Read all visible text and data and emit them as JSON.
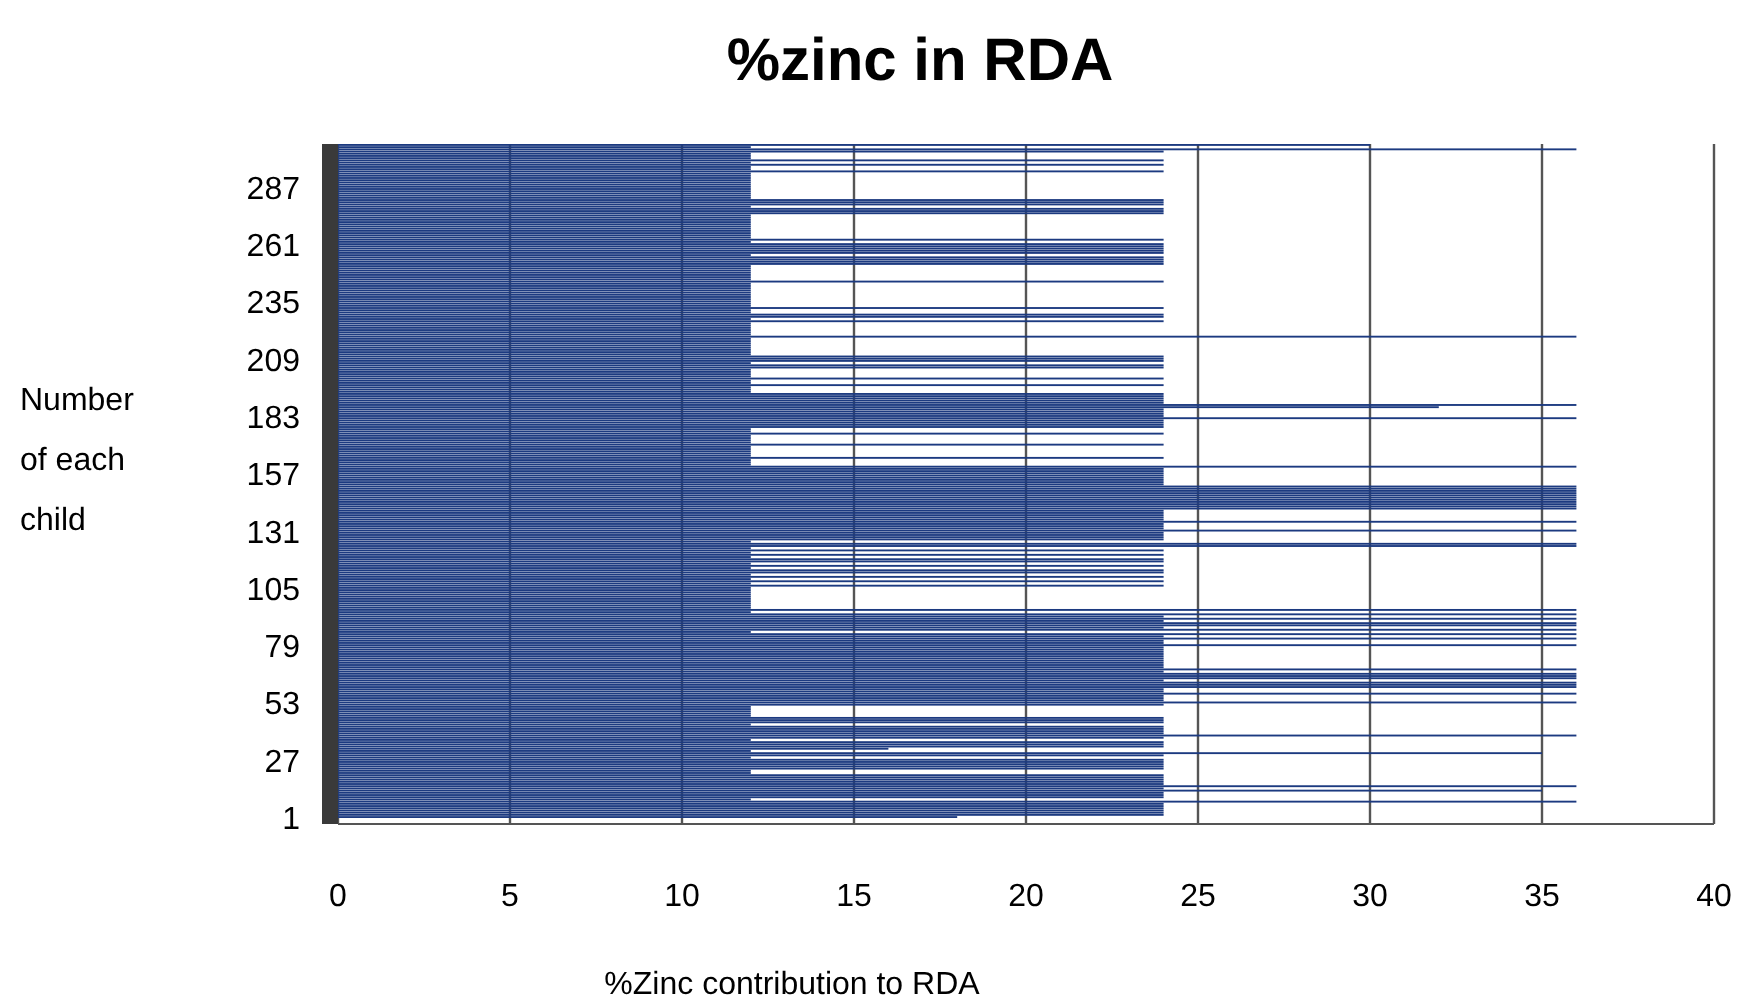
{
  "chart_data": {
    "type": "bar",
    "orientation": "horizontal",
    "title": "%zinc in RDA",
    "xlabel": "%Zinc contribution to RDA",
    "ylabel": "Number of each child",
    "categories": [
      null,
      null,
      null,
      null,
      null,
      null,
      null,
      null,
      null,
      null,
      null,
      null,
      null,
      null,
      null,
      null,
      null,
      null,
      null,
      "287",
      null,
      null,
      null,
      null,
      null,
      null,
      null,
      null,
      null,
      null,
      null,
      null,
      null,
      null,
      null,
      null,
      null,
      null,
      null,
      null,
      null,
      null,
      null,
      null,
      null,
      "261",
      null,
      null,
      null,
      null,
      null,
      null,
      null,
      null,
      null,
      null,
      null,
      null,
      null,
      null,
      null,
      null,
      null,
      null,
      null,
      null,
      null,
      null,
      null,
      null,
      null,
      "235",
      null,
      null,
      null,
      null,
      null,
      null,
      null,
      null,
      null,
      null,
      null,
      null,
      null,
      null,
      null,
      null,
      null,
      null,
      null,
      null,
      null,
      null,
      null,
      null,
      null,
      "209",
      null,
      null,
      null,
      null,
      null,
      null,
      null,
      null,
      null,
      null,
      null,
      null,
      null,
      null,
      null,
      null,
      null,
      null,
      null,
      null,
      null,
      null,
      null,
      null,
      null,
      "183",
      null,
      null,
      null,
      null,
      null,
      null,
      null,
      null,
      null,
      null,
      null,
      null,
      null,
      null,
      null,
      null,
      null,
      null,
      null,
      null,
      null,
      null,
      null,
      null,
      null,
      "157",
      null,
      null,
      null,
      null,
      null,
      null,
      null,
      null,
      null,
      null,
      null,
      null,
      null,
      null,
      null,
      null,
      null,
      null,
      null,
      null,
      null,
      null,
      null,
      null,
      null,
      "131",
      null,
      null,
      null,
      null,
      null,
      null,
      null,
      null,
      null,
      null,
      null,
      null,
      null,
      null,
      null,
      null,
      null,
      null,
      null,
      null,
      null,
      null,
      null,
      null,
      null,
      "105",
      null,
      null,
      null,
      null,
      null,
      null,
      null,
      null,
      null,
      null,
      null,
      null,
      null,
      null,
      null,
      null,
      null,
      null,
      null,
      null,
      null,
      null,
      null,
      null,
      null,
      "79",
      null,
      null,
      null,
      null,
      null,
      null,
      null,
      null,
      null,
      null,
      null,
      null,
      null,
      null,
      null,
      null,
      null,
      null,
      null,
      null,
      null,
      null,
      null,
      null,
      null,
      "53",
      null,
      null,
      null,
      null,
      null,
      null,
      null,
      null,
      null,
      null,
      null,
      null,
      null,
      null,
      null,
      null,
      null,
      null,
      null,
      null,
      null,
      null,
      null,
      null,
      null,
      "27",
      null,
      null,
      null,
      null,
      null,
      null,
      null,
      null,
      null,
      null,
      null,
      null,
      null,
      null,
      null,
      null,
      null,
      null,
      null,
      null,
      null,
      null,
      null,
      null,
      null,
      "1"
    ],
    "values": [
      30,
      12,
      36,
      24,
      12,
      12,
      12,
      24,
      12,
      24,
      12,
      12,
      24,
      12,
      12,
      12,
      12,
      12,
      12,
      12,
      12,
      12,
      12,
      12,
      12,
      24,
      24,
      24,
      12,
      24,
      24,
      24,
      12,
      12,
      12,
      12,
      12,
      12,
      12,
      12,
      12,
      12,
      12,
      24,
      12,
      24,
      24,
      24,
      24,
      24,
      12,
      24,
      24,
      24,
      24,
      12,
      12,
      12,
      12,
      12,
      12,
      12,
      24,
      12,
      12,
      12,
      12,
      12,
      12,
      12,
      12,
      12,
      12,
      12,
      24,
      12,
      12,
      24,
      24,
      12,
      24,
      12,
      12,
      12,
      12,
      12,
      12,
      36,
      12,
      12,
      12,
      12,
      12,
      12,
      12,
      12,
      24,
      24,
      24,
      12,
      24,
      24,
      12,
      12,
      12,
      12,
      24,
      12,
      12,
      24,
      12,
      12,
      12,
      24,
      24,
      24,
      24,
      24,
      36,
      32,
      24,
      24,
      24,
      24,
      36,
      24,
      24,
      24,
      24,
      12,
      12,
      24,
      12,
      12,
      12,
      12,
      24,
      12,
      12,
      12,
      12,
      12,
      24,
      12,
      12,
      12,
      36,
      24,
      24,
      24,
      24,
      24,
      24,
      24,
      24,
      36,
      36,
      36,
      36,
      36,
      36,
      36,
      36,
      36,
      36,
      36,
      24,
      24,
      24,
      24,
      24,
      36,
      24,
      24,
      24,
      36,
      24,
      24,
      24,
      24,
      12,
      36,
      36,
      12,
      24,
      12,
      24,
      12,
      24,
      24,
      12,
      24,
      12,
      24,
      24,
      12,
      24,
      12,
      24,
      12,
      24,
      12,
      12,
      12,
      12,
      12,
      12,
      12,
      12,
      12,
      12,
      36,
      12,
      36,
      24,
      36,
      24,
      36,
      36,
      24,
      36,
      12,
      36,
      24,
      36,
      24,
      24,
      36,
      24,
      24,
      24,
      24,
      24,
      24,
      24,
      24,
      24,
      24,
      36,
      24,
      36,
      36,
      36,
      24,
      36,
      36,
      36,
      24,
      24,
      36,
      24,
      24,
      24,
      36,
      24,
      12,
      12,
      12,
      12,
      12,
      24,
      24,
      24,
      12,
      24,
      24,
      24,
      24,
      36,
      24,
      12,
      24,
      24,
      24,
      16,
      12,
      35,
      24,
      12,
      24,
      24,
      24,
      24,
      24,
      12,
      12,
      24,
      24,
      24,
      24,
      24,
      36,
      24,
      35,
      24,
      24,
      24,
      12,
      36,
      24,
      24,
      24,
      24,
      24,
      24,
      18
    ],
    "color": "#1c3a80",
    "xlim": [
      0,
      40
    ],
    "xticks": [
      0,
      5,
      10,
      15,
      20,
      25,
      30,
      35,
      40
    ],
    "grid": "x"
  }
}
